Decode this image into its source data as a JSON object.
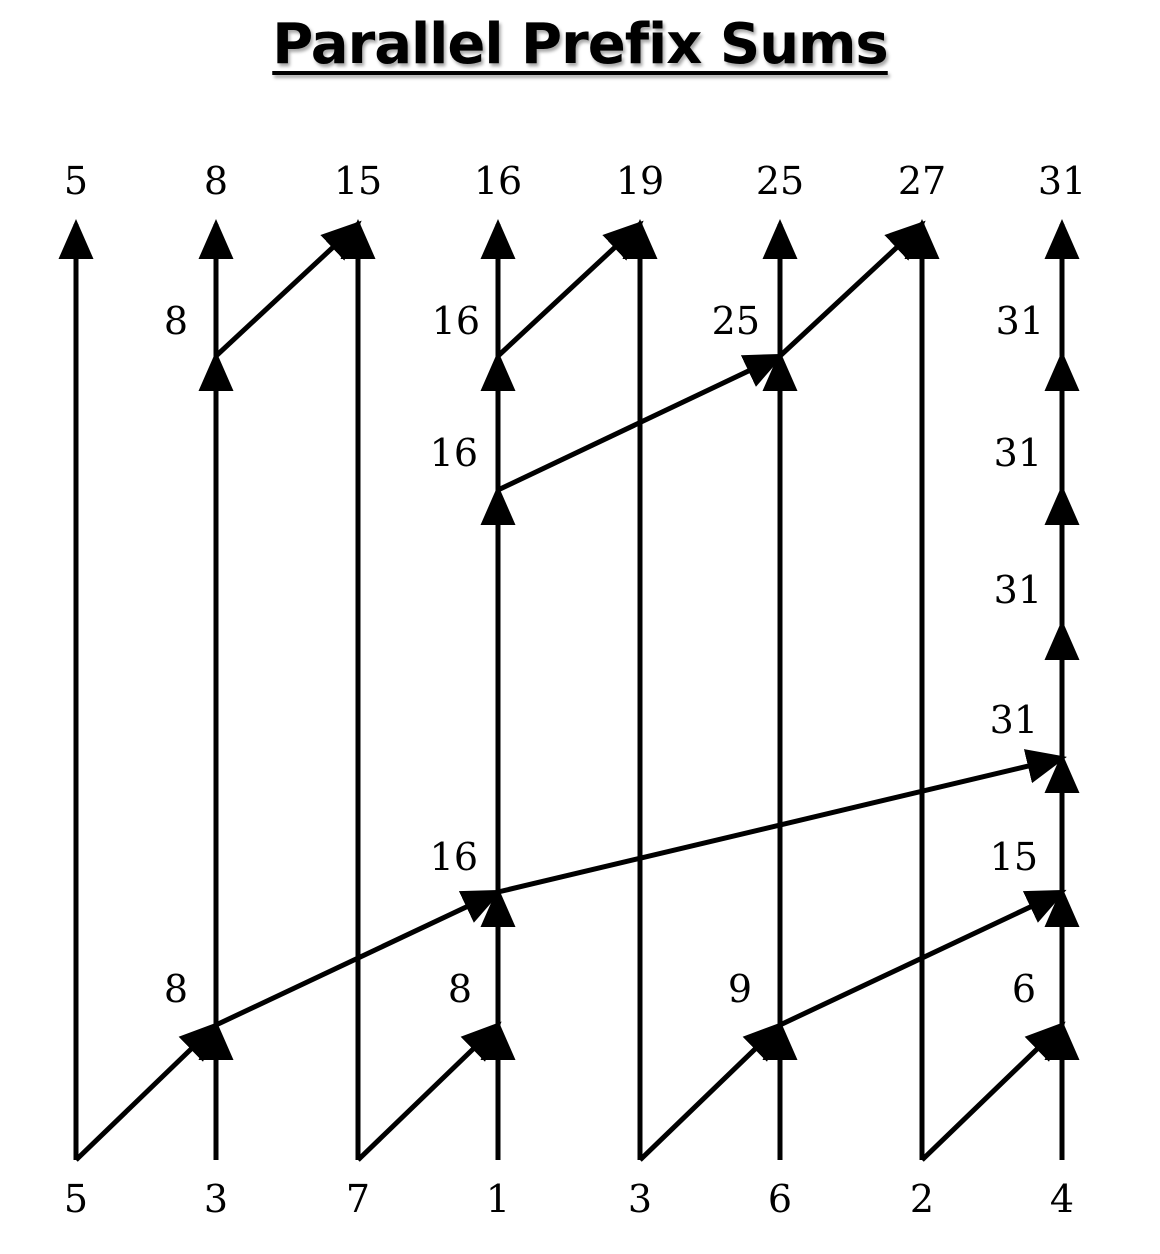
{
  "title": "Parallel Prefix Sums",
  "inputs": [
    "5",
    "3",
    "7",
    "1",
    "3",
    "6",
    "2",
    "4"
  ],
  "outputs": [
    "5",
    "8",
    "15",
    "16",
    "19",
    "25",
    "27",
    "31"
  ],
  "node_values": {
    "up_level1": [
      "8",
      "8",
      "9",
      "6"
    ],
    "up_level2": [
      "16",
      "15"
    ],
    "up_level3": [
      "31"
    ],
    "down": [
      "31",
      "31",
      "31",
      "16",
      "16",
      "8",
      "16",
      "25",
      "31"
    ]
  },
  "colors": {
    "ink": "#000000",
    "background": "#ffffff"
  }
}
